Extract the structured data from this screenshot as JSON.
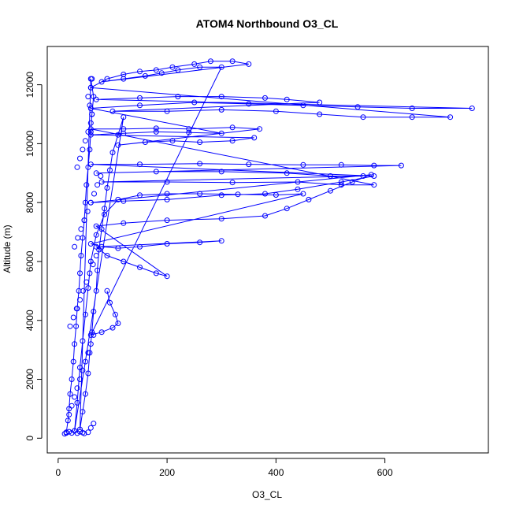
{
  "chart_data": {
    "type": "scatter",
    "title": "ATOM4 Northbound O3_CL",
    "xlabel": "O3_CL",
    "ylabel": "Altitude (m)",
    "xlim": [
      -20,
      790
    ],
    "ylim": [
      -500,
      13300
    ],
    "x_ticks": [
      0,
      200,
      400,
      600
    ],
    "x_tick_labels": [
      "0",
      "200",
      "400",
      "600"
    ],
    "y_ticks": [
      0,
      2000,
      4000,
      6000,
      8000,
      10000,
      12000
    ],
    "y_tick_labels": [
      "0",
      "2000",
      "4000",
      "6000",
      "8000",
      "10000",
      "12000"
    ],
    "grid": false,
    "marker": "open-circle",
    "color": "#0000ff",
    "series": [
      {
        "name": "",
        "style": "points-and-lines",
        "description": "profile traces",
        "points": [
          [
            15,
            200
          ],
          [
            18,
            600
          ],
          [
            20,
            1000
          ],
          [
            22,
            1500
          ],
          [
            25,
            2000
          ],
          [
            28,
            2600
          ],
          [
            30,
            3200
          ],
          [
            33,
            3800
          ],
          [
            35,
            4400
          ],
          [
            38,
            5000
          ],
          [
            40,
            5600
          ],
          [
            42,
            6200
          ],
          [
            45,
            6800
          ],
          [
            48,
            7400
          ],
          [
            50,
            8000
          ],
          [
            52,
            8600
          ],
          [
            55,
            9200
          ],
          [
            58,
            9800
          ],
          [
            60,
            10400
          ],
          [
            62,
            11000
          ],
          [
            65,
            11600
          ],
          [
            60,
            12200
          ],
          [
            40,
            300
          ],
          [
            45,
            900
          ],
          [
            50,
            1500
          ],
          [
            55,
            2200
          ],
          [
            58,
            2900
          ],
          [
            62,
            3600
          ],
          [
            65,
            4300
          ],
          [
            70,
            5000
          ],
          [
            72,
            5700
          ],
          [
            75,
            6400
          ],
          [
            80,
            7100
          ],
          [
            85,
            7800
          ],
          [
            90,
            8500
          ],
          [
            95,
            9100
          ],
          [
            100,
            9700
          ],
          [
            110,
            10300
          ],
          [
            120,
            10900
          ],
          [
            30,
            250
          ],
          [
            35,
            1200
          ],
          [
            40,
            2400
          ],
          [
            45,
            3300
          ],
          [
            50,
            4200
          ],
          [
            55,
            5100
          ],
          [
            60,
            6000
          ],
          [
            70,
            6900
          ],
          [
            85,
            7600
          ],
          [
            110,
            8100
          ],
          [
            150,
            8250
          ],
          [
            200,
            8300
          ],
          [
            260,
            8300
          ],
          [
            330,
            8280
          ],
          [
            400,
            8260
          ],
          [
            450,
            8300
          ],
          [
            60,
            6600
          ],
          [
            80,
            6500
          ],
          [
            110,
            6450
          ],
          [
            150,
            6500
          ],
          [
            200,
            6600
          ],
          [
            260,
            6650
          ],
          [
            300,
            6700
          ],
          [
            70,
            6500
          ],
          [
            90,
            6200
          ],
          [
            120,
            6000
          ],
          [
            150,
            5800
          ],
          [
            180,
            5600
          ],
          [
            200,
            5500
          ],
          [
            70,
            7200
          ],
          [
            120,
            7300
          ],
          [
            200,
            7400
          ],
          [
            300,
            7450
          ],
          [
            380,
            7550
          ],
          [
            420,
            7800
          ],
          [
            460,
            8100
          ],
          [
            500,
            8400
          ],
          [
            540,
            8700
          ],
          [
            575,
            8950
          ],
          [
            60,
            8000
          ],
          [
            120,
            8050
          ],
          [
            200,
            8100
          ],
          [
            300,
            8250
          ],
          [
            380,
            8300
          ],
          [
            440,
            8450
          ],
          [
            520,
            8700
          ],
          [
            580,
            8900
          ],
          [
            60,
            9300
          ],
          [
            150,
            9300
          ],
          [
            260,
            9320
          ],
          [
            350,
            9300
          ],
          [
            450,
            9280
          ],
          [
            520,
            9280
          ],
          [
            580,
            9260
          ],
          [
            630,
            9260
          ],
          [
            70,
            9000
          ],
          [
            180,
            9050
          ],
          [
            300,
            9050
          ],
          [
            420,
            9000
          ],
          [
            500,
            8900
          ],
          [
            560,
            8900
          ],
          [
            80,
            8700
          ],
          [
            200,
            8700
          ],
          [
            320,
            8680
          ],
          [
            440,
            8700
          ],
          [
            520,
            8600
          ],
          [
            580,
            8600
          ],
          [
            60,
            10500
          ],
          [
            120,
            10500
          ],
          [
            180,
            10520
          ],
          [
            240,
            10500
          ],
          [
            320,
            10550
          ],
          [
            370,
            10500
          ],
          [
            110,
            9950
          ],
          [
            160,
            10050
          ],
          [
            210,
            10100
          ],
          [
            260,
            10050
          ],
          [
            320,
            10100
          ],
          [
            360,
            10200
          ],
          [
            60,
            10300
          ],
          [
            120,
            10350
          ],
          [
            180,
            10400
          ],
          [
            240,
            10380
          ],
          [
            300,
            10350
          ],
          [
            60,
            11200
          ],
          [
            150,
            11300
          ],
          [
            250,
            11400
          ],
          [
            350,
            11350
          ],
          [
            450,
            11300
          ],
          [
            550,
            11250
          ],
          [
            650,
            11200
          ],
          [
            760,
            11200
          ],
          [
            70,
            11500
          ],
          [
            150,
            11550
          ],
          [
            220,
            11600
          ],
          [
            300,
            11600
          ],
          [
            380,
            11550
          ],
          [
            420,
            11500
          ],
          [
            480,
            11400
          ],
          [
            100,
            11100
          ],
          [
            200,
            11100
          ],
          [
            300,
            11150
          ],
          [
            400,
            11100
          ],
          [
            480,
            11000
          ],
          [
            560,
            10900
          ],
          [
            650,
            10900
          ],
          [
            720,
            10900
          ],
          [
            60,
            11900
          ],
          [
            90,
            12200
          ],
          [
            120,
            12350
          ],
          [
            150,
            12450
          ],
          [
            180,
            12500
          ],
          [
            210,
            12600
          ],
          [
            250,
            12700
          ],
          [
            280,
            12800
          ],
          [
            320,
            12800
          ],
          [
            350,
            12700
          ],
          [
            80,
            12100
          ],
          [
            120,
            12200
          ],
          [
            160,
            12300
          ],
          [
            190,
            12400
          ],
          [
            220,
            12500
          ],
          [
            260,
            12600
          ],
          [
            300,
            12600
          ],
          [
            60,
            3500
          ],
          [
            80,
            3600
          ],
          [
            100,
            3750
          ],
          [
            110,
            3900
          ],
          [
            105,
            4200
          ],
          [
            95,
            4600
          ],
          [
            90,
            5000
          ]
        ]
      },
      {
        "name": "",
        "style": "points",
        "description": "low-ozone column",
        "points": [
          [
            12,
            150
          ],
          [
            15,
            180
          ],
          [
            20,
            220
          ],
          [
            25,
            180
          ],
          [
            30,
            250
          ],
          [
            35,
            170
          ],
          [
            40,
            220
          ],
          [
            45,
            190
          ],
          [
            48,
            160
          ],
          [
            55,
            200
          ],
          [
            60,
            350
          ],
          [
            65,
            500
          ],
          [
            20,
            800
          ],
          [
            25,
            1100
          ],
          [
            30,
            1400
          ],
          [
            35,
            1700
          ],
          [
            40,
            2000
          ],
          [
            45,
            2300
          ],
          [
            50,
            2600
          ],
          [
            55,
            2900
          ],
          [
            60,
            3200
          ],
          [
            65,
            3500
          ],
          [
            22,
            3800
          ],
          [
            28,
            4100
          ],
          [
            34,
            4400
          ],
          [
            40,
            4700
          ],
          [
            46,
            5000
          ],
          [
            52,
            5300
          ],
          [
            58,
            5600
          ],
          [
            64,
            5900
          ],
          [
            70,
            6200
          ],
          [
            30,
            6500
          ],
          [
            36,
            6800
          ],
          [
            42,
            7100
          ],
          [
            48,
            7400
          ],
          [
            54,
            7700
          ],
          [
            60,
            8000
          ],
          [
            66,
            8300
          ],
          [
            72,
            8600
          ],
          [
            78,
            8900
          ],
          [
            35,
            9200
          ],
          [
            40,
            9500
          ],
          [
            45,
            9800
          ],
          [
            50,
            10100
          ],
          [
            55,
            10400
          ],
          [
            60,
            10700
          ],
          [
            62,
            11000
          ],
          [
            58,
            11300
          ],
          [
            55,
            11600
          ],
          [
            60,
            11900
          ],
          [
            62,
            12200
          ]
        ]
      }
    ]
  }
}
